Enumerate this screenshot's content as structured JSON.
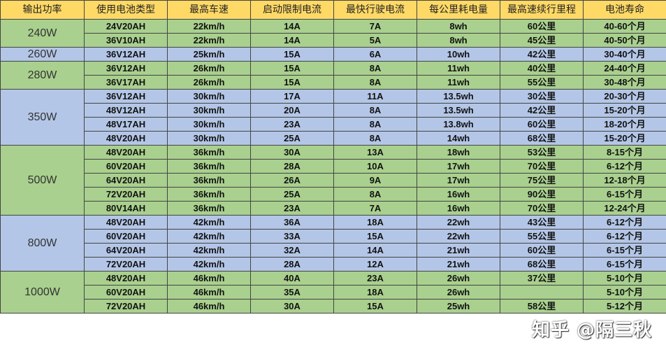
{
  "headers": [
    "输出功率",
    "使用电池类型",
    "最高车速",
    "启动限制电流",
    "最快行驶电流",
    "每公里耗电量",
    "最高速续行里程",
    "电池寿命"
  ],
  "colors": {
    "header": "#ffd966",
    "green": "#a9d08e",
    "blue": "#b4c6e7"
  },
  "groups": [
    {
      "power": "240W",
      "color": "green",
      "rows": [
        [
          "24V20AH",
          "22km/h",
          "14A",
          "7A",
          "8wh",
          "60公里",
          "40-60个月"
        ],
        [
          "36V10AH",
          "22km/h",
          "14A",
          "5A",
          "8wh",
          "45公里",
          "40-50个月"
        ]
      ]
    },
    {
      "power": "260W",
      "color": "blue",
      "rows": [
        [
          "36V12AH",
          "25km/h",
          "15A",
          "6A",
          "10wh",
          "42公里",
          "30-40个月"
        ]
      ]
    },
    {
      "power": "280W",
      "color": "green",
      "rows": [
        [
          "36V12AH",
          "26km/h",
          "15A",
          "8A",
          "11wh",
          "40公里",
          "24-40个月"
        ],
        [
          "36V17AH",
          "26km/h",
          "15A",
          "8A",
          "11wh",
          "55公里",
          "30-48个月"
        ]
      ]
    },
    {
      "power": "350W",
      "color": "blue",
      "rows": [
        [
          "36V12AH",
          "30km/h",
          "17A",
          "11A",
          "13.5wh",
          "30公里",
          "20-30个月"
        ],
        [
          "48V12AH",
          "30km/h",
          "20A",
          "8A",
          "13.5wh",
          "42公里",
          "15-20个月"
        ],
        [
          "48V17AH",
          "30km/h",
          "23A",
          "8A",
          "13.8wh",
          "60公里",
          "18-20个月"
        ],
        [
          "48V20AH",
          "30km/h",
          "25A",
          "8A",
          "14wh",
          "68公里",
          "15-20个月"
        ]
      ]
    },
    {
      "power": "500W",
      "color": "green",
      "rows": [
        [
          "48V20AH",
          "36km/h",
          "30A",
          "13A",
          "18wh",
          "53公里",
          "8-15个月"
        ],
        [
          "60V20AH",
          "36km/h",
          "28A",
          "10A",
          "17wh",
          "70公里",
          "6-12个月"
        ],
        [
          "64V20AH",
          "36km/h",
          "26A",
          "9A",
          "17wh",
          "75公里",
          "12-18个月"
        ],
        [
          "72V20AH",
          "36km/h",
          "25A",
          "8A",
          "16wh",
          "90公里",
          "6-15个月"
        ],
        [
          "80V14AH",
          "36km/h",
          "23A",
          "7A",
          "16wh",
          "70公里",
          "12-24个月"
        ]
      ]
    },
    {
      "power": "800W",
      "color": "blue",
      "rows": [
        [
          "48V20AH",
          "42km/h",
          "36A",
          "18A",
          "22wh",
          "43公里",
          "6-12个月"
        ],
        [
          "60V20AH",
          "42km/h",
          "33A",
          "15A",
          "22wh",
          "55公里",
          "6-12个月"
        ],
        [
          "64V20AH",
          "42km/h",
          "32A",
          "14A",
          "21wh",
          "60公里",
          "6-15个月"
        ],
        [
          "72V20AH",
          "42km/h",
          "28A",
          "12A",
          "21wh",
          "68公里",
          "6-15个月"
        ]
      ]
    },
    {
      "power": "1000W",
      "color": "green",
      "rows": [
        [
          "48V20AH",
          "46km/h",
          "40A",
          "23A",
          "26wh",
          "37公里",
          "5-10个月"
        ],
        [
          "60V20AH",
          "46km/h",
          "35A",
          "18A",
          "26wh",
          "",
          "5-10个月"
        ],
        [
          "72V20AH",
          "46km/h",
          "30A",
          "15A",
          "25wh",
          "58公里",
          "5-12个月"
        ]
      ]
    }
  ],
  "watermark": "知乎 @隔三秋"
}
